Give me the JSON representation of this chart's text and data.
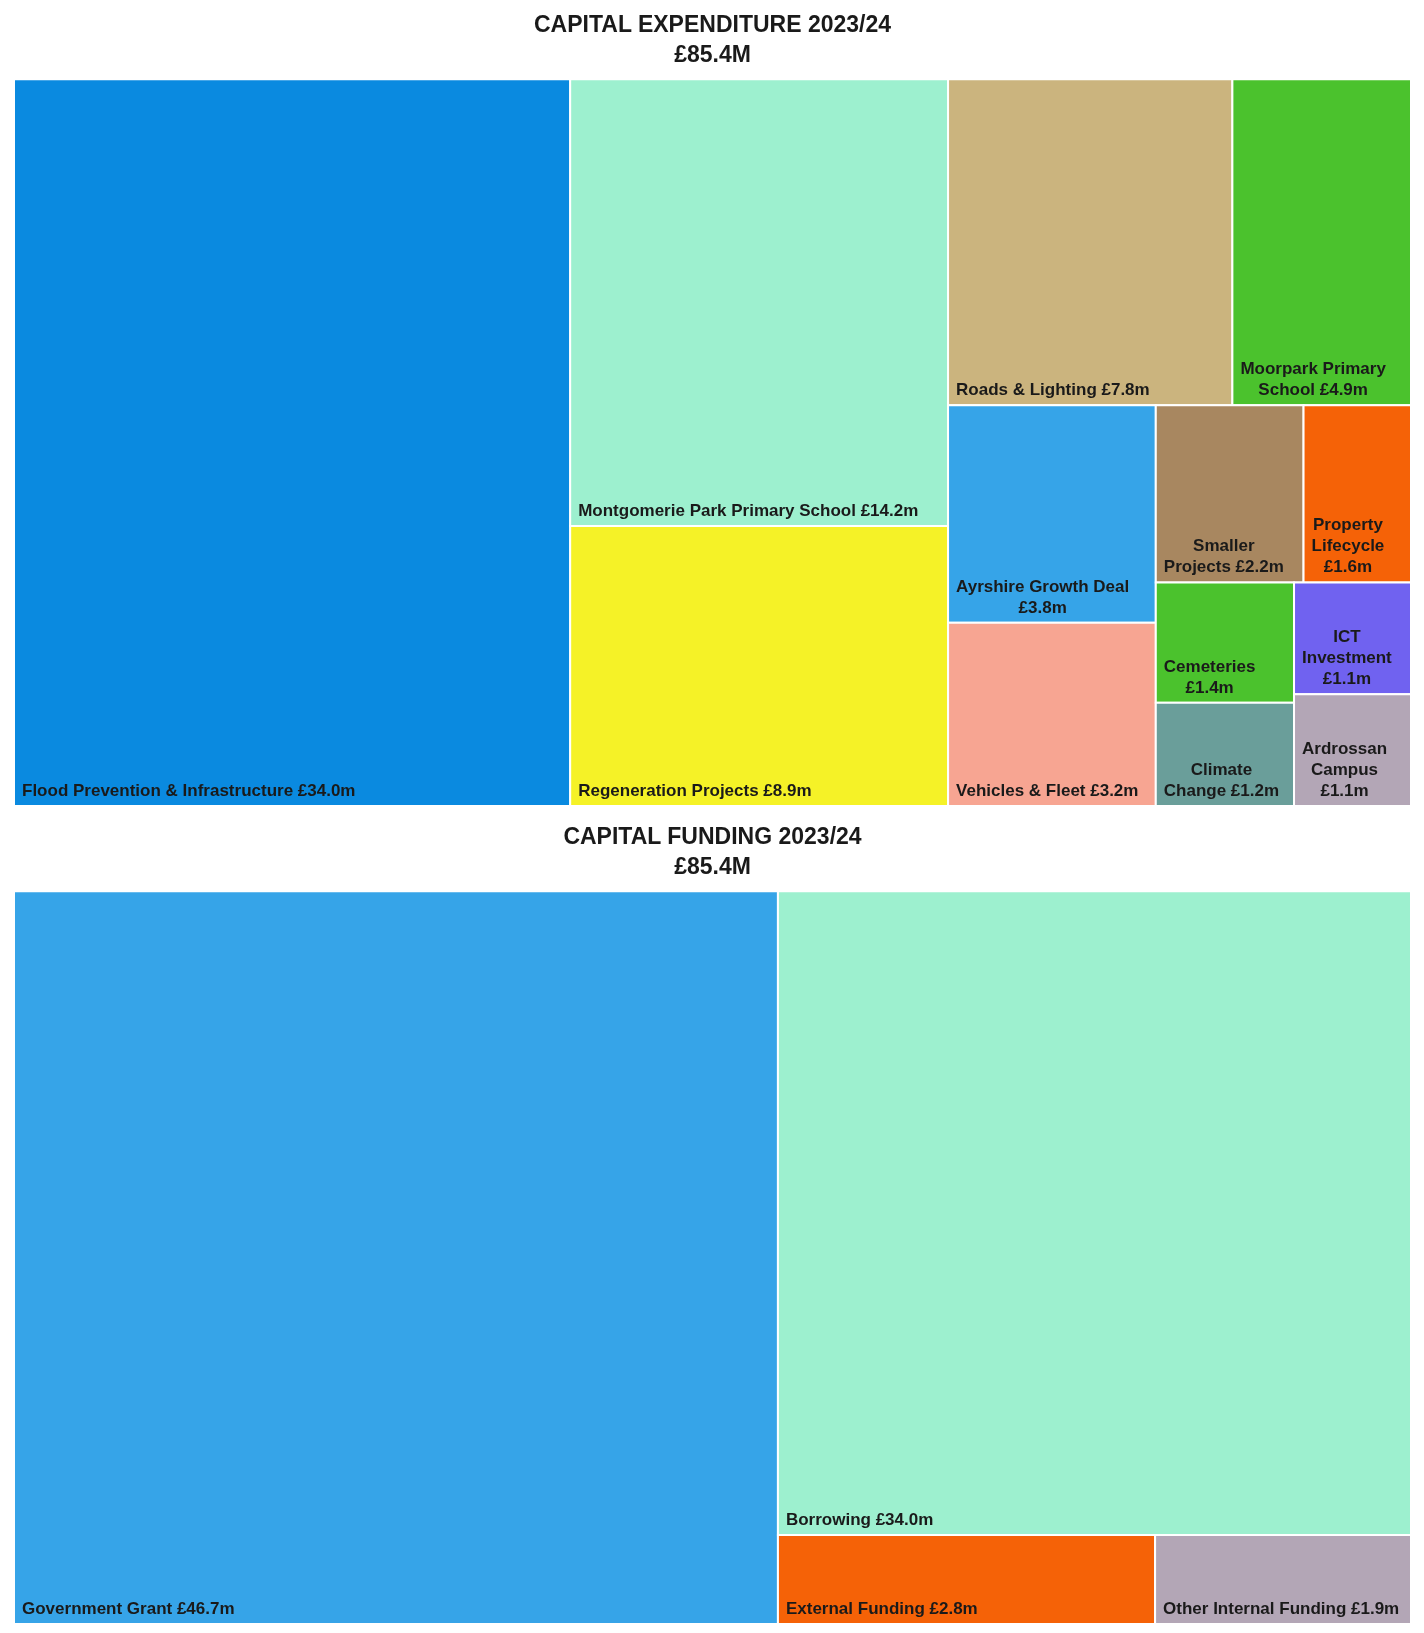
{
  "chart_data": [
    {
      "type": "other",
      "title": "CAPITAL EXPENDITURE 2023/24",
      "subtitle": "£85.4M",
      "categories": [
        "Flood Prevention & Infrastructure",
        "Montgomerie Park Primary School",
        "Regeneration Projects",
        "Roads & Lighting",
        "Moorpark Primary School",
        "Ayrshire Growth Deal",
        "Vehicles & Fleet",
        "Smaller Projects",
        "Property Lifecycle",
        "Cemeteries",
        "Climate Change",
        "ICT Investment",
        "Ardrossan Campus"
      ],
      "values": [
        34.0,
        14.2,
        8.9,
        7.8,
        4.9,
        3.8,
        3.2,
        2.2,
        1.6,
        1.4,
        1.2,
        1.1,
        1.1
      ],
      "value_labels": [
        "£34.0m",
        "£14.2m",
        "£8.9m",
        "£7.8m",
        "£4.9m",
        "£3.8m",
        "£3.2m",
        "£2.2m",
        "£1.6m",
        "£1.4m",
        "£1.2m",
        "£1.1m",
        "£1.1m"
      ],
      "colors": [
        "#0a8ae0",
        "#9df0cf",
        "#f5f227",
        "#cbb47e",
        "#4bc22d",
        "#36a4e8",
        "#f7a592",
        "#a88760",
        "#f56207",
        "#4bc22d",
        "#6a9e9a",
        "#7062f0",
        "#b3a6b6"
      ]
    },
    {
      "type": "other",
      "title": "CAPITAL FUNDING 2023/24",
      "subtitle": "£85.4M",
      "categories": [
        "Government Grant",
        "Borrowing",
        "External Funding",
        "Other Internal Funding"
      ],
      "values": [
        46.7,
        34.0,
        2.8,
        1.9
      ],
      "value_labels": [
        "£46.7m",
        "£34.0m",
        "£2.8m",
        "£1.9m"
      ],
      "colors": [
        "#36a4e8",
        "#9df0cf",
        "#f56207",
        "#b3a6b6"
      ]
    }
  ]
}
